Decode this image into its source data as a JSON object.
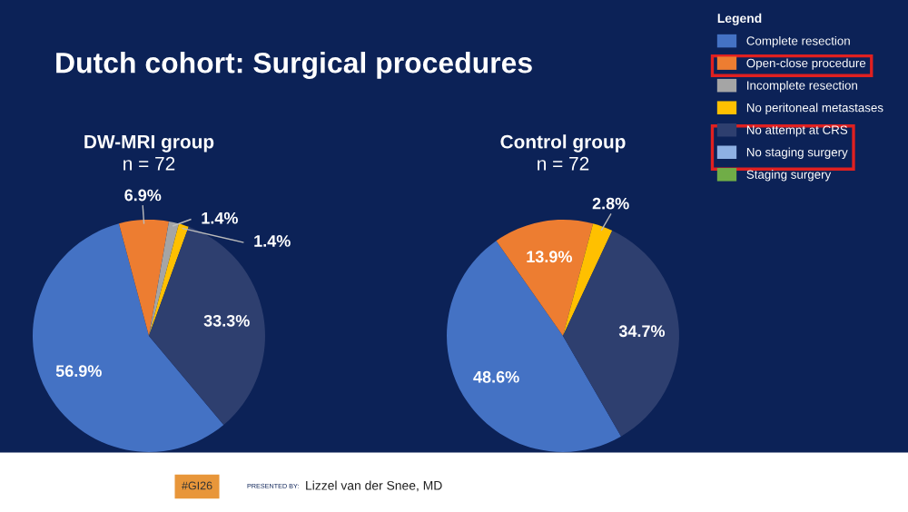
{
  "chart_data": [
    {
      "type": "pie",
      "title": "DW-MRI group",
      "subtitle": "n = 72",
      "annotations": [
        "Dutch cohort: Surgical procedures"
      ],
      "legend_title": "Legend",
      "categories": [
        "Complete resection",
        "Open-close procedure",
        "Incomplete resection",
        "No peritoneal metastases",
        "No attempt at CRS",
        "No staging surgery",
        "Staging surgery"
      ],
      "values": [
        56.9,
        6.9,
        1.4,
        1.4,
        33.3,
        0,
        0
      ],
      "value_labels": [
        "56.9%",
        "6.9%",
        "1.4%",
        "1.4%",
        "33.3%",
        null,
        null
      ],
      "colors": [
        "#4472c4",
        "#ed7d31",
        "#a5a5a5",
        "#ffc000",
        "#2e3f6f",
        "#8eb0e3",
        "#70ad47"
      ],
      "legend": "top right"
    },
    {
      "type": "pie",
      "title": "Control group",
      "subtitle": "n = 72",
      "annotations": [
        "PRESENTED BY:",
        "Lizzel van der Snee, MD",
        "#GI26"
      ],
      "categories": [
        null,
        null,
        null,
        null,
        null,
        null,
        null
      ],
      "values": [
        48.6,
        13.9,
        0,
        2.8,
        34.7,
        0,
        0
      ],
      "value_labels": [
        "48.6%",
        "13.9%",
        null,
        "2.8%",
        "34.7%",
        null,
        null
      ],
      "colors": [
        "#4472c4",
        "#ed7d31",
        "#a5a5a5",
        "#ffc000",
        "#2e3f6f",
        "#8eb0e3",
        "#70ad47"
      ]
    }
  ]
}
